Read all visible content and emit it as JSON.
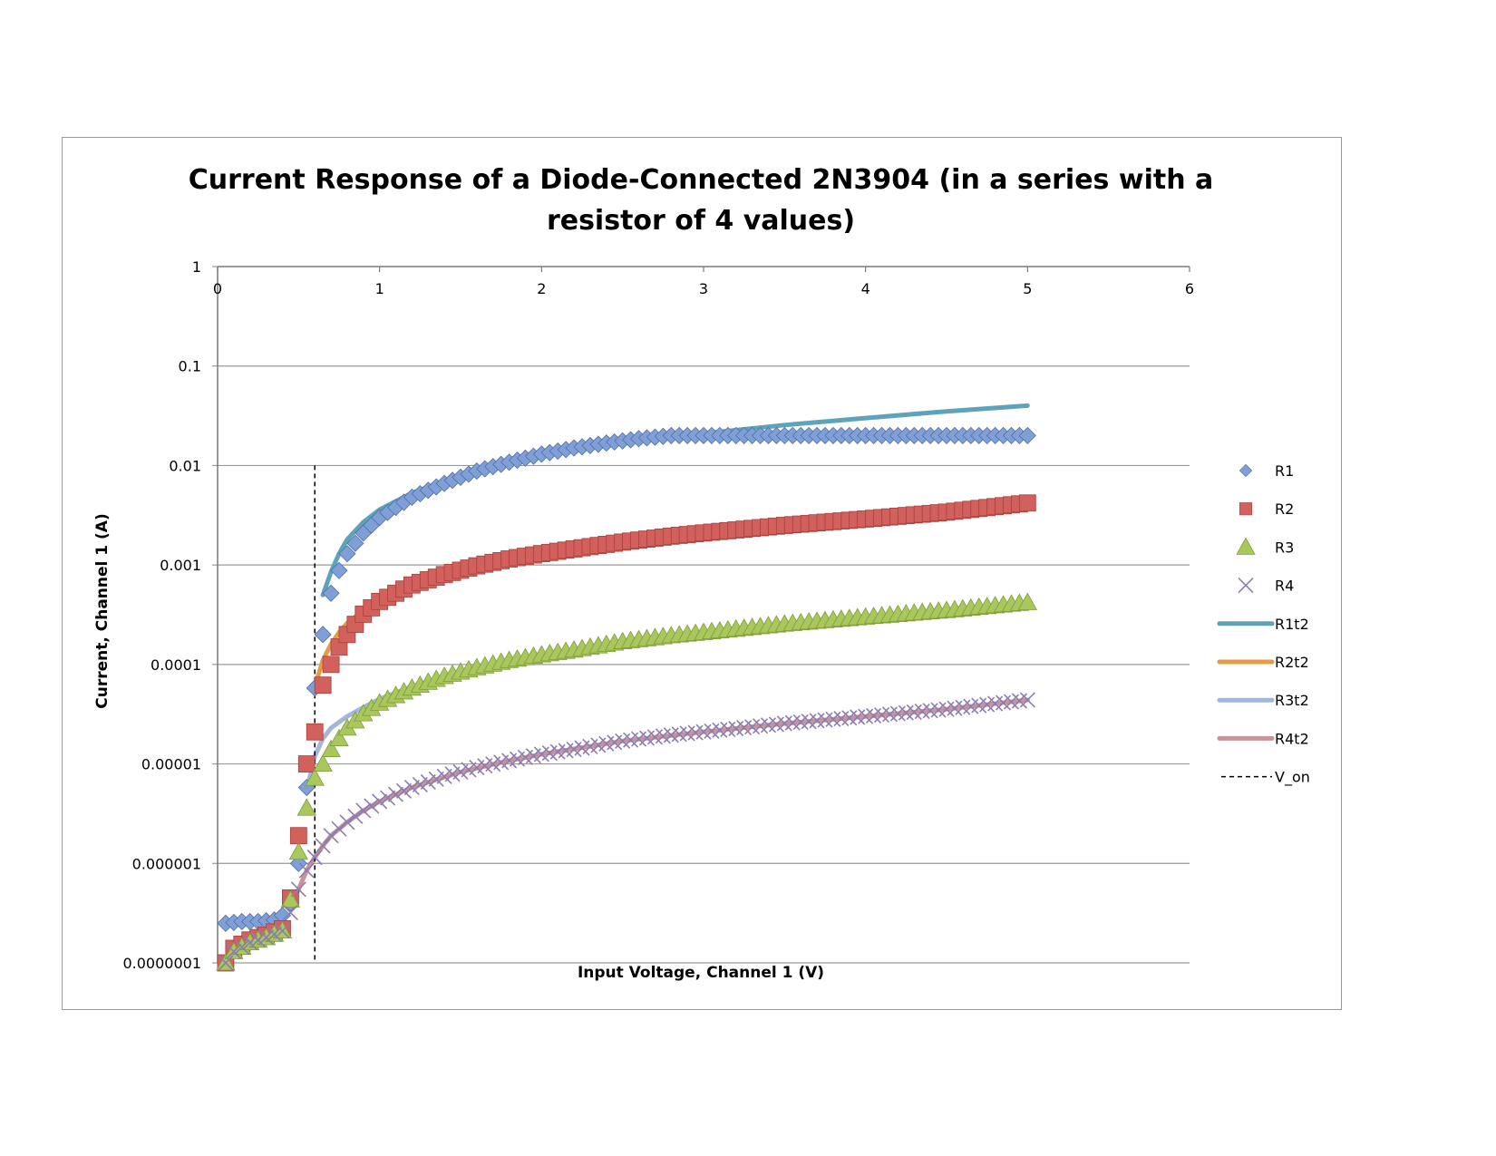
{
  "colors": {
    "R1": "#7f9fd6",
    "R2": "#d2605c",
    "R3": "#a9c75c",
    "R4": "#8c7cb2",
    "R1t2": "#5ea3b9",
    "R2t2": "#e59a45",
    "R3t2": "#a3b7dc",
    "R4t2": "#c89498",
    "V_on": "#000000",
    "grid": "#9a9a9a"
  },
  "chart_data": {
    "type": "scatter",
    "title_line1": "Current Response of a Diode-Connected 2N3904 (in a series with a",
    "title_line2": "resistor of 4 values)",
    "xlabel": "Input Voltage, Channel 1 (V)",
    "ylabel": "Current, Channel 1 (A)",
    "xlim": [
      0,
      6
    ],
    "ylim": [
      1e-07,
      1
    ],
    "yscale": "log",
    "x_ticks": [
      "0",
      "1",
      "2",
      "3",
      "4",
      "5",
      "6"
    ],
    "y_ticks": [
      "1",
      "0.1",
      "0.01",
      "0.001",
      "0.0001",
      "0.00001",
      "0.000001",
      "0.0000001"
    ],
    "grid": true,
    "legend_position": "right",
    "v_on": 0.6,
    "series": [
      {
        "name": "R1",
        "marker": "diamond",
        "points": [
          [
            0.05,
            2.5e-07
          ],
          [
            0.15,
            2.6e-07
          ],
          [
            0.25,
            2.6e-07
          ],
          [
            0.35,
            2.7e-07
          ],
          [
            0.4,
            3e-07
          ],
          [
            0.45,
            4e-07
          ],
          [
            0.5,
            1e-06
          ],
          [
            0.55,
            5.8e-06
          ],
          [
            0.6,
            5.8e-05
          ],
          [
            0.65,
            0.0002
          ],
          [
            0.7,
            0.00052
          ],
          [
            0.75,
            0.00088
          ],
          [
            0.8,
            0.0013
          ],
          [
            0.9,
            0.0021
          ],
          [
            1.0,
            0.003
          ],
          [
            1.2,
            0.0048
          ],
          [
            1.4,
            0.0066
          ],
          [
            1.6,
            0.0088
          ],
          [
            1.8,
            0.0108
          ],
          [
            2.0,
            0.013
          ],
          [
            2.2,
            0.015
          ],
          [
            2.4,
            0.0168
          ],
          [
            2.6,
            0.0186
          ],
          [
            2.8,
            0.02
          ],
          [
            3.0,
            0.02
          ],
          [
            3.5,
            0.02
          ],
          [
            4.0,
            0.02
          ],
          [
            4.5,
            0.02
          ],
          [
            5.0,
            0.02
          ]
        ]
      },
      {
        "name": "R2",
        "marker": "square",
        "points": [
          [
            0.05,
            1e-07
          ],
          [
            0.1,
            1.4e-07
          ],
          [
            0.2,
            1.7e-07
          ],
          [
            0.3,
            1.9e-07
          ],
          [
            0.4,
            2.2e-07
          ],
          [
            0.45,
            4.5e-07
          ],
          [
            0.5,
            1.9e-06
          ],
          [
            0.55,
            1e-05
          ],
          [
            0.6,
            2.1e-05
          ],
          [
            0.65,
            6.2e-05
          ],
          [
            0.7,
            0.0001
          ],
          [
            0.75,
            0.00015
          ],
          [
            0.8,
            0.0002
          ],
          [
            0.9,
            0.00032
          ],
          [
            1.0,
            0.00043
          ],
          [
            1.2,
            0.00063
          ],
          [
            1.4,
            0.0008
          ],
          [
            1.6,
            0.00098
          ],
          [
            1.8,
            0.00115
          ],
          [
            2.0,
            0.0013
          ],
          [
            2.2,
            0.00145
          ],
          [
            2.5,
            0.0017
          ],
          [
            2.8,
            0.00195
          ],
          [
            3.0,
            0.0021
          ],
          [
            3.5,
            0.0025
          ],
          [
            4.0,
            0.0029
          ],
          [
            4.5,
            0.0034
          ],
          [
            5.0,
            0.0042
          ]
        ]
      },
      {
        "name": "R3",
        "marker": "triangle",
        "points": [
          [
            0.05,
            1e-07
          ],
          [
            0.1,
            1.3e-07
          ],
          [
            0.2,
            1.6e-07
          ],
          [
            0.3,
            1.8e-07
          ],
          [
            0.4,
            2.1e-07
          ],
          [
            0.45,
            4.3e-07
          ],
          [
            0.5,
            1.3e-06
          ],
          [
            0.55,
            3.6e-06
          ],
          [
            0.6,
            7.2e-06
          ],
          [
            0.65,
            1e-05
          ],
          [
            0.7,
            1.4e-05
          ],
          [
            0.75,
            1.8e-05
          ],
          [
            0.8,
            2.3e-05
          ],
          [
            0.9,
            3.2e-05
          ],
          [
            1.0,
            4.1e-05
          ],
          [
            1.2,
            5.8e-05
          ],
          [
            1.4,
            7.6e-05
          ],
          [
            1.6,
            9.3e-05
          ],
          [
            1.8,
            0.00011
          ],
          [
            2.0,
            0.000125
          ],
          [
            2.2,
            0.00014
          ],
          [
            2.5,
            0.00017
          ],
          [
            2.8,
            0.000195
          ],
          [
            3.0,
            0.00021
          ],
          [
            3.5,
            0.000255
          ],
          [
            4.0,
            0.0003
          ],
          [
            4.5,
            0.00035
          ],
          [
            5.0,
            0.00042
          ]
        ]
      },
      {
        "name": "R4",
        "marker": "x",
        "points": [
          [
            0.05,
            1e-07
          ],
          [
            0.1,
            1.3e-07
          ],
          [
            0.2,
            1.6e-07
          ],
          [
            0.3,
            1.8e-07
          ],
          [
            0.4,
            2.1e-07
          ],
          [
            0.45,
            3.2e-07
          ],
          [
            0.5,
            5.5e-07
          ],
          [
            0.55,
            8.5e-07
          ],
          [
            0.6,
            1.15e-06
          ],
          [
            0.65,
            1.5e-06
          ],
          [
            0.7,
            1.9e-06
          ],
          [
            0.8,
            2.6e-06
          ],
          [
            0.9,
            3.4e-06
          ],
          [
            1.0,
            4.2e-06
          ],
          [
            1.2,
            5.8e-06
          ],
          [
            1.4,
            7.5e-06
          ],
          [
            1.6,
            9.2e-06
          ],
          [
            1.8,
            1.08e-05
          ],
          [
            2.0,
            1.25e-05
          ],
          [
            2.2,
            1.4e-05
          ],
          [
            2.5,
            1.7e-05
          ],
          [
            2.8,
            1.95e-05
          ],
          [
            3.0,
            2.1e-05
          ],
          [
            3.5,
            2.55e-05
          ],
          [
            4.0,
            3e-05
          ],
          [
            4.5,
            3.55e-05
          ],
          [
            5.0,
            4.4e-05
          ]
        ]
      },
      {
        "name": "R1t2",
        "marker": "line",
        "points": [
          [
            0.65,
            0.0005
          ],
          [
            0.7,
            0.00085
          ],
          [
            0.75,
            0.0013
          ],
          [
            0.8,
            0.0018
          ],
          [
            0.9,
            0.0027
          ],
          [
            1.0,
            0.0036
          ],
          [
            1.2,
            0.0053
          ],
          [
            1.4,
            0.007
          ],
          [
            1.6,
            0.009
          ],
          [
            1.8,
            0.011
          ],
          [
            2.0,
            0.013
          ],
          [
            2.2,
            0.0148
          ],
          [
            2.5,
            0.0172
          ],
          [
            3.0,
            0.021
          ],
          [
            3.5,
            0.0255
          ],
          [
            4.0,
            0.03
          ],
          [
            4.5,
            0.035
          ],
          [
            5.0,
            0.04
          ]
        ]
      },
      {
        "name": "R2t2",
        "marker": "line",
        "points": [
          [
            0.6,
            6e-05
          ],
          [
            0.65,
            0.00011
          ],
          [
            0.7,
            0.00016
          ],
          [
            0.75,
            0.00021
          ],
          [
            0.8,
            0.00026
          ],
          [
            0.9,
            0.00035
          ],
          [
            1.0,
            0.00045
          ],
          [
            1.2,
            0.00064
          ],
          [
            1.5,
            0.00089
          ],
          [
            1.8,
            0.00115
          ],
          [
            2.0,
            0.0013
          ],
          [
            2.5,
            0.0017
          ],
          [
            3.0,
            0.0021
          ],
          [
            3.5,
            0.0025
          ],
          [
            4.0,
            0.0029
          ],
          [
            4.5,
            0.0034
          ],
          [
            5.0,
            0.004
          ]
        ]
      },
      {
        "name": "R3t2",
        "marker": "line",
        "points": [
          [
            0.55,
            5.5e-06
          ],
          [
            0.6,
            1.2e-05
          ],
          [
            0.65,
            1.8e-05
          ],
          [
            0.7,
            2.3e-05
          ],
          [
            0.8,
            3e-05
          ],
          [
            0.9,
            3.7e-05
          ],
          [
            1.0,
            4.5e-05
          ],
          [
            1.2,
            6e-05
          ],
          [
            1.5,
            8.4e-05
          ],
          [
            1.8,
            0.000108
          ],
          [
            2.0,
            0.000125
          ],
          [
            2.5,
            0.000168
          ],
          [
            3.0,
            0.00021
          ],
          [
            3.5,
            0.000255
          ],
          [
            4.0,
            0.0003
          ],
          [
            4.5,
            0.00035
          ],
          [
            5.0,
            0.00042
          ]
        ]
      },
      {
        "name": "R4t2",
        "marker": "line",
        "points": [
          [
            0.45,
            3.5e-07
          ],
          [
            0.5,
            5.5e-07
          ],
          [
            0.55,
            8.5e-07
          ],
          [
            0.6,
            1.15e-06
          ],
          [
            0.65,
            1.5e-06
          ],
          [
            0.7,
            1.9e-06
          ],
          [
            0.8,
            2.6e-06
          ],
          [
            0.9,
            3.4e-06
          ],
          [
            1.0,
            4.2e-06
          ],
          [
            1.2,
            5.8e-06
          ],
          [
            1.5,
            8.3e-06
          ],
          [
            1.8,
            1.08e-05
          ],
          [
            2.0,
            1.25e-05
          ],
          [
            2.5,
            1.7e-05
          ],
          [
            3.0,
            2.1e-05
          ],
          [
            3.5,
            2.55e-05
          ],
          [
            4.0,
            3e-05
          ],
          [
            4.5,
            3.55e-05
          ],
          [
            5.0,
            4.4e-05
          ]
        ]
      },
      {
        "name": "V_on",
        "marker": "dashed-vertical",
        "x": 0.6,
        "y_range": [
          1e-07,
          0.01
        ]
      }
    ]
  }
}
